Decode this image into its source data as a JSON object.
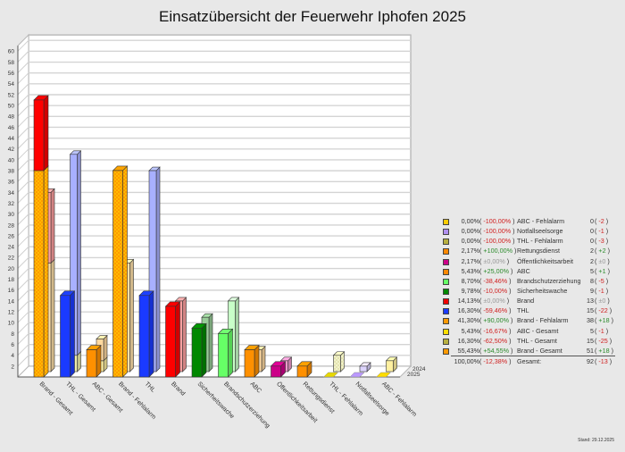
{
  "title": "Einsatzübersicht der Feuerwehr Iphofen 2025",
  "footer": "Stand: 29.12.2025",
  "chart_data": {
    "type": "bar",
    "title": "Einsatzübersicht der Feuerwehr Iphofen 2025",
    "xlabel": "",
    "ylabel": "",
    "ylim": [
      0,
      61
    ],
    "y_ticks": [
      2,
      4,
      6,
      8,
      10,
      12,
      14,
      16,
      18,
      20,
      22,
      24,
      26,
      28,
      30,
      32,
      34,
      36,
      38,
      40,
      42,
      44,
      46,
      48,
      50,
      52,
      54,
      56,
      58,
      60
    ],
    "grid": true,
    "style": "3d-grouped-depth",
    "depth_labels": [
      "2024",
      "2025"
    ],
    "categories": [
      "Brand - Gesamt",
      "THL - Gesamt",
      "ABC - Gesamt",
      "Brand - Fehlalarm",
      "THL",
      "Brand",
      "Sicherheitswache",
      "Brandschutzerziehung",
      "ABC",
      "Öffentlichkeitsarbeit",
      "Rettungsdienst",
      "THL - Fehlalarm",
      "Notfallseelsorge",
      "ABC - Fehlalarm"
    ],
    "series": [
      {
        "name": "2025",
        "values": [
          51,
          15,
          5,
          38,
          15,
          13,
          9,
          8,
          5,
          2,
          2,
          0,
          0,
          0
        ]
      },
      {
        "name": "2024",
        "values": [
          33,
          40,
          6,
          20,
          37,
          13,
          10,
          13,
          4,
          2,
          0,
          3,
          1,
          2
        ]
      }
    ],
    "stacks_2025": {
      "Brand - Gesamt": [
        {
          "part": "Brand - Fehlalarm",
          "value": 38
        },
        {
          "part": "Brand",
          "value": 13
        }
      ]
    },
    "stacks_2024": {
      "Brand - Gesamt": [
        {
          "part": "Brand - Fehlalarm",
          "value": 20
        },
        {
          "part": "Brand",
          "value": 13
        }
      ],
      "THL - Gesamt": [
        {
          "part": "THL - Fehlalarm",
          "value": 3
        },
        {
          "part": "THL",
          "value": 37
        }
      ],
      "ABC - Gesamt": [
        {
          "part": "ABC - Fehlalarm",
          "value": 2
        },
        {
          "part": "ABC",
          "value": 4
        }
      ]
    },
    "legend_position": "right"
  },
  "bars": [
    {
      "label": "Brand - Gesamt",
      "v25": 51,
      "v24": 33,
      "c25": "#ff9900",
      "c24": "#ffd9a0",
      "stack25": [
        {
          "v": 38,
          "c": "#ff9900",
          "pattern": true
        },
        {
          "v": 13,
          "c": "#ff0000"
        }
      ],
      "stack24": [
        {
          "v": 20,
          "c": "#ffe0a8"
        },
        {
          "v": 13,
          "c": "#ffa0a0"
        }
      ]
    },
    {
      "label": "THL - Gesamt",
      "v25": 15,
      "v24": 40,
      "stack25": [
        {
          "v": 15,
          "c": "#1a3aff"
        }
      ],
      "stack24": [
        {
          "v": 3,
          "c": "#eeeeaa"
        },
        {
          "v": 37,
          "c": "#a8b0ff"
        }
      ]
    },
    {
      "label": "ABC - Gesamt",
      "v25": 5,
      "v24": 6,
      "stack25": [
        {
          "v": 5,
          "c": "#ff9000"
        }
      ],
      "stack24": [
        {
          "v": 2,
          "c": "#fff0a0"
        },
        {
          "v": 4,
          "c": "#ffd9a0"
        }
      ]
    },
    {
      "label": "Brand - Fehlalarm",
      "v25": 38,
      "v24": 20,
      "stack25": [
        {
          "v": 38,
          "c": "#ff9900",
          "pattern": true
        }
      ],
      "stack24": [
        {
          "v": 20,
          "c": "#ffe0a8"
        }
      ]
    },
    {
      "label": "THL",
      "v25": 15,
      "v24": 37,
      "stack25": [
        {
          "v": 15,
          "c": "#1a3aff"
        }
      ],
      "stack24": [
        {
          "v": 37,
          "c": "#a8b0ff"
        }
      ]
    },
    {
      "label": "Brand",
      "v25": 13,
      "v24": 13,
      "stack25": [
        {
          "v": 13,
          "c": "#ff0000"
        }
      ],
      "stack24": [
        {
          "v": 13,
          "c": "#ffa0a0"
        }
      ]
    },
    {
      "label": "Sicherheitswache",
      "v25": 9,
      "v24": 10,
      "stack25": [
        {
          "v": 9,
          "c": "#008800"
        }
      ],
      "stack24": [
        {
          "v": 10,
          "c": "#99cc99"
        }
      ]
    },
    {
      "label": "Brandschutzerziehung",
      "v25": 8,
      "v24": 13,
      "stack25": [
        {
          "v": 8,
          "c": "#66ff66"
        }
      ],
      "stack24": [
        {
          "v": 13,
          "c": "#c8ffc8"
        }
      ]
    },
    {
      "label": "ABC",
      "v25": 5,
      "v24": 4,
      "stack25": [
        {
          "v": 5,
          "c": "#ff9000"
        }
      ],
      "stack24": [
        {
          "v": 4,
          "c": "#ffd9a0"
        }
      ]
    },
    {
      "label": "Öffentlichkeitsarbeit",
      "v25": 2,
      "v24": 2,
      "stack25": [
        {
          "v": 2,
          "c": "#cc0088"
        }
      ],
      "stack24": [
        {
          "v": 2,
          "c": "#ee99cc"
        }
      ]
    },
    {
      "label": "Rettungsdienst",
      "v25": 2,
      "v24": 0,
      "stack25": [
        {
          "v": 2,
          "c": "#ff9000"
        }
      ],
      "stack24": []
    },
    {
      "label": "THL - Fehlalarm",
      "v25": 0,
      "v24": 3,
      "stack25": [],
      "stack24": [
        {
          "v": 3,
          "c": "#eeeebb",
          "pattern": true
        }
      ],
      "floor25": "#e8d800"
    },
    {
      "label": "Notfallseelsorge",
      "v25": 0,
      "v24": 1,
      "stack25": [],
      "stack24": [
        {
          "v": 1,
          "c": "#ddd4ff"
        }
      ],
      "floor25": "#bb99ff"
    },
    {
      "label": "ABC - Fehlalarm",
      "v25": 0,
      "v24": 2,
      "stack25": [],
      "stack24": [
        {
          "v": 2,
          "c": "#fff0a0"
        }
      ],
      "floor25": "#ffdd00"
    }
  ],
  "legend": {
    "rows": [
      {
        "color": "#ffcc00",
        "pct": "0,00%",
        "chg": "-100,00%",
        "chg_sign": "neg",
        "name": "ABC - Fehlalarm",
        "count": "0",
        "delta": "-2",
        "delta_sign": "neg"
      },
      {
        "color": "#b090f0",
        "pct": "0,00%",
        "chg": "-100,00%",
        "chg_sign": "neg",
        "name": "Notfallseelsorge",
        "count": "0",
        "delta": "-1",
        "delta_sign": "neg"
      },
      {
        "color": "#b8b040",
        "pct": "0,00%",
        "chg": "-100,00%",
        "chg_sign": "neg",
        "name": "THL - Fehlalarm",
        "count": "0",
        "delta": "-3",
        "delta_sign": "neg"
      },
      {
        "color": "#ff8800",
        "pct": "2,17%",
        "chg": "+100,00%",
        "chg_sign": "pos",
        "name": "Rettungsdienst",
        "count": "2",
        "delta": "+2",
        "delta_sign": "pos"
      },
      {
        "color": "#cc0088",
        "pct": "2,17%",
        "chg": "±0,00%",
        "chg_sign": "zero",
        "name": "Öffentlichkeitsarbeit",
        "count": "2",
        "delta": "±0",
        "delta_sign": "zero"
      },
      {
        "color": "#ff8800",
        "pct": "5,43%",
        "chg": "+25,00%",
        "chg_sign": "pos",
        "name": "ABC",
        "count": "5",
        "delta": "+1",
        "delta_sign": "pos"
      },
      {
        "color": "#66ff66",
        "pct": "8,70%",
        "chg": "-38,46%",
        "chg_sign": "neg",
        "name": "Brandschutzerziehung",
        "count": "8",
        "delta": "-5",
        "delta_sign": "neg"
      },
      {
        "color": "#008800",
        "pct": "9,78%",
        "chg": "-10,00%",
        "chg_sign": "neg",
        "name": "Sicherheitswache",
        "count": "9",
        "delta": "-1",
        "delta_sign": "neg"
      },
      {
        "color": "#ee0000",
        "pct": "14,13%",
        "chg": "±0,00%",
        "chg_sign": "zero",
        "name": "Brand",
        "count": "13",
        "delta": "±0",
        "delta_sign": "zero"
      },
      {
        "color": "#1a3aff",
        "pct": "16,30%",
        "chg": "-59,46%",
        "chg_sign": "neg",
        "name": "THL",
        "count": "15",
        "delta": "-22",
        "delta_sign": "neg"
      },
      {
        "color": "#ff9900",
        "pct": "41,30%",
        "chg": "+90,00%",
        "chg_sign": "pos",
        "name": "Brand - Fehlalarm",
        "count": "38",
        "delta": "+18",
        "delta_sign": "pos"
      },
      {
        "color": "#ffdd00",
        "pct": "5,43%",
        "chg": "-16,67%",
        "chg_sign": "neg",
        "name": "ABC - Gesamt",
        "count": "5",
        "delta": "-1",
        "delta_sign": "neg"
      },
      {
        "color": "#b8b040",
        "pct": "16,30%",
        "chg": "-62,50%",
        "chg_sign": "neg",
        "name": "THL - Gesamt",
        "count": "15",
        "delta": "-25",
        "delta_sign": "neg"
      },
      {
        "color": "#ff9900",
        "pct": "55,43%",
        "chg": "+54,55%",
        "chg_sign": "pos",
        "name": "Brand - Gesamt",
        "count": "51",
        "delta": "+18",
        "delta_sign": "pos"
      }
    ],
    "total": {
      "pct": "100,00%",
      "chg": "-12,38%",
      "chg_sign": "neg",
      "name": "Gesamt:",
      "count": "92",
      "delta": "-13",
      "delta_sign": "neg"
    }
  }
}
